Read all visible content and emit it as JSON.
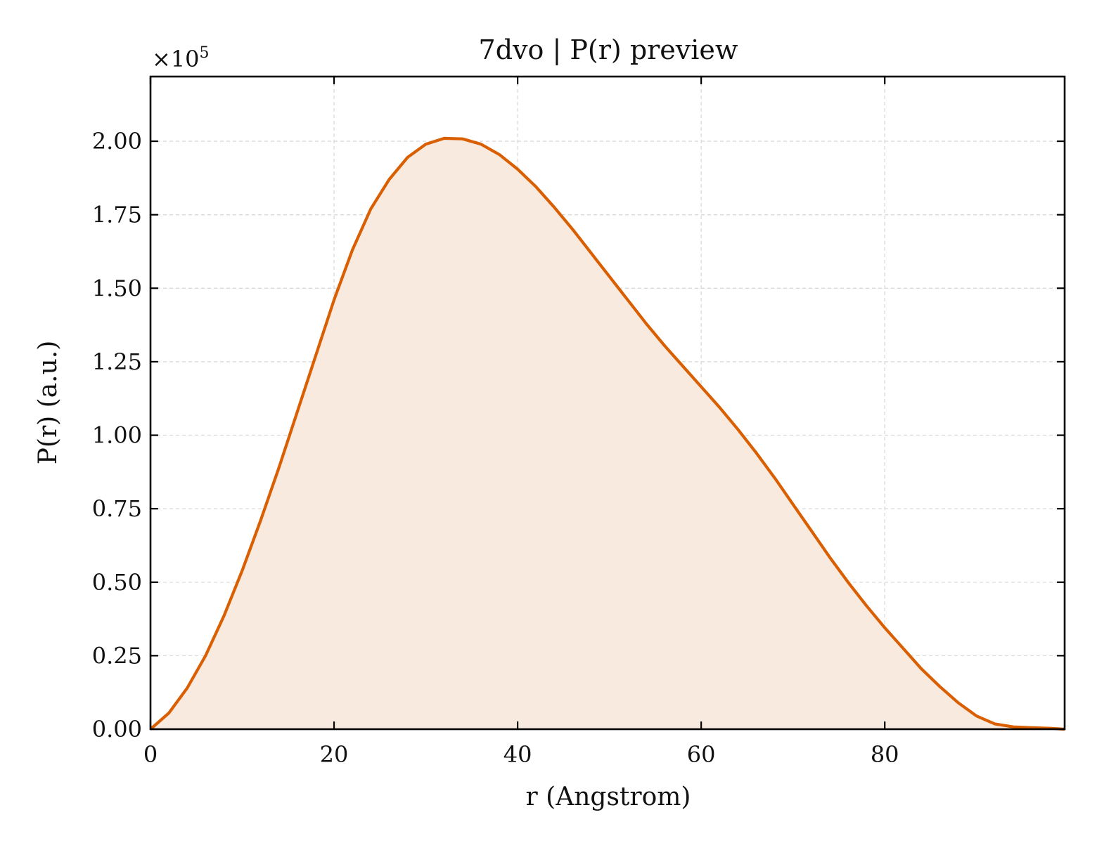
{
  "chart_data": {
    "type": "area",
    "title": "7dvo | P(r) preview",
    "xlabel": "r (Angstrom)",
    "ylabel": "P(r) (a.u.)",
    "y_multiplier": "×10",
    "y_multiplier_exp": "5",
    "xlim": [
      0,
      99.6
    ],
    "ylim": [
      0,
      2.22
    ],
    "x_ticks": [
      0,
      20,
      40,
      60,
      80
    ],
    "x_tick_labels": [
      "0",
      "20",
      "40",
      "60",
      "80"
    ],
    "y_ticks": [
      0,
      0.25,
      0.5,
      0.75,
      1.0,
      1.25,
      1.5,
      1.75,
      2.0
    ],
    "y_tick_labels": [
      "0.00",
      "0.25",
      "0.50",
      "0.75",
      "1.00",
      "1.25",
      "1.50",
      "1.75",
      "2.00"
    ],
    "grid": true,
    "line_color": "#d95f02",
    "fill_color": "#f8eadf",
    "series": [
      {
        "x": [
          0,
          2,
          4,
          6,
          8,
          10,
          12,
          14,
          16,
          18,
          20,
          22,
          24,
          26,
          28,
          30,
          32,
          34,
          36,
          38,
          40,
          42,
          44,
          46,
          48,
          50,
          52,
          54,
          56,
          58,
          60,
          62,
          64,
          66,
          68,
          70,
          72,
          74,
          76,
          78,
          80,
          82,
          84,
          86,
          88,
          90,
          92,
          94,
          96,
          98,
          99.6
        ],
        "y": [
          0.0,
          0.055,
          0.14,
          0.25,
          0.385,
          0.54,
          0.71,
          0.89,
          1.08,
          1.27,
          1.46,
          1.63,
          1.77,
          1.87,
          1.945,
          1.99,
          2.01,
          2.008,
          1.99,
          1.955,
          1.905,
          1.845,
          1.775,
          1.7,
          1.62,
          1.54,
          1.46,
          1.38,
          1.305,
          1.235,
          1.165,
          1.095,
          1.02,
          0.94,
          0.855,
          0.765,
          0.675,
          0.585,
          0.5,
          0.42,
          0.345,
          0.275,
          0.205,
          0.145,
          0.09,
          0.045,
          0.018,
          0.008,
          0.005,
          0.003,
          0.0
        ]
      }
    ]
  }
}
